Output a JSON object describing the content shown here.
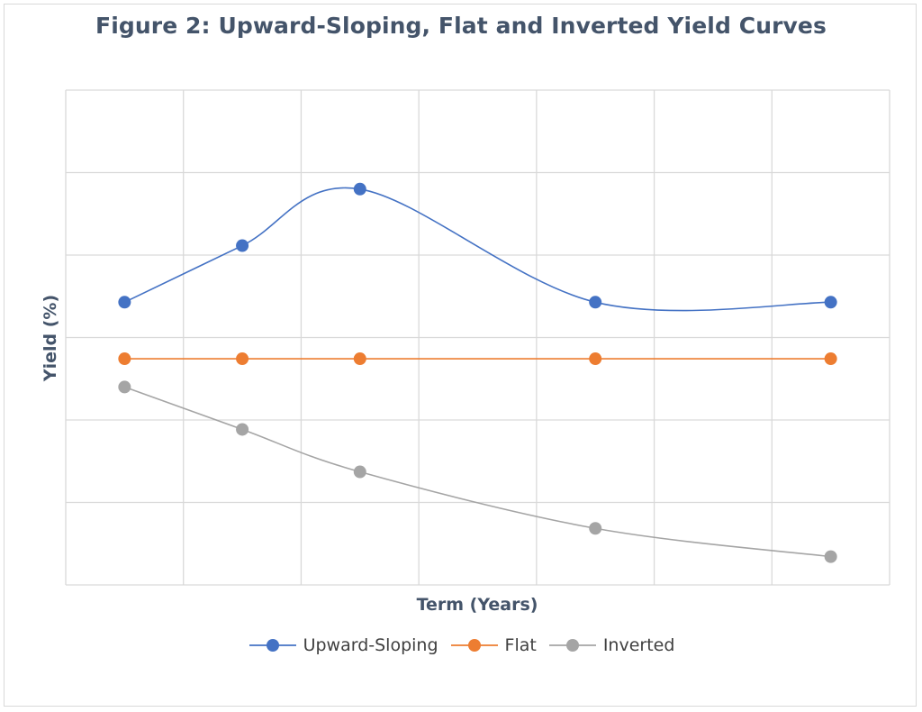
{
  "chart_data": {
    "type": "line",
    "title": "Figure 2: Upward-Sloping, Flat and Inverted Yield Curves",
    "xlabel": "Term (Years)",
    "ylabel": "Yield (%)",
    "grid": true,
    "smooth": true,
    "legend_position": "bottom",
    "x": [
      1,
      2,
      3,
      4,
      5,
      6,
      7
    ],
    "xlim": [
      0.5,
      7.5
    ],
    "ylim": [
      0,
      7
    ],
    "series": [
      {
        "name": "Upward-Sloping",
        "color": "#4472c4",
        "x": [
          1,
          2,
          3,
          5,
          7
        ],
        "values": [
          4.0,
          4.8,
          5.6,
          4.0,
          4.0
        ]
      },
      {
        "name": "Flat",
        "color": "#ed7d31",
        "x": [
          1,
          2,
          3,
          5,
          7
        ],
        "values": [
          3.2,
          3.2,
          3.2,
          3.2,
          3.2
        ]
      },
      {
        "name": "Inverted",
        "color": "#a5a5a5",
        "x": [
          1,
          2,
          3,
          5,
          7
        ],
        "values": [
          2.8,
          2.2,
          1.6,
          0.8,
          0.4
        ]
      }
    ]
  }
}
